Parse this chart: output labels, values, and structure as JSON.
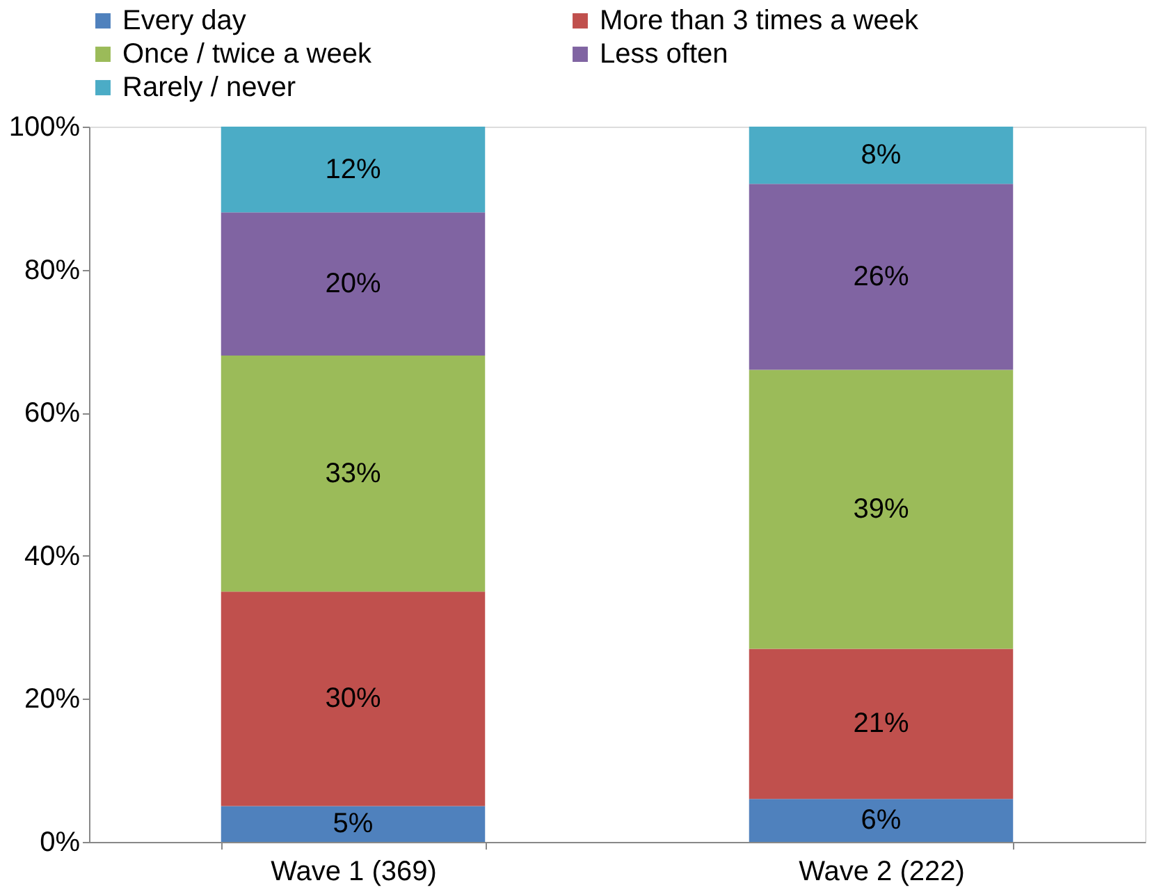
{
  "chart_data": {
    "type": "bar",
    "stacked": true,
    "categories": [
      "Wave 1 (369)",
      "Wave 2 (222)"
    ],
    "series": [
      {
        "name": "Every day",
        "color": "#4f81bd",
        "values": [
          5,
          6
        ],
        "value_labels": [
          "5%",
          "6%"
        ]
      },
      {
        "name": "More than 3 times a week",
        "color": "#c0504d",
        "values": [
          30,
          21
        ],
        "value_labels": [
          "30%",
          "21%"
        ]
      },
      {
        "name": "Once / twice a week",
        "color": "#9bbb59",
        "values": [
          33,
          39
        ],
        "value_labels": [
          "33%",
          "39%"
        ]
      },
      {
        "name": "Less often",
        "color": "#8064a2",
        "values": [
          20,
          26
        ],
        "value_labels": [
          "20%",
          "26%"
        ]
      },
      {
        "name": "Rarely / never",
        "color": "#4bacc6",
        "values": [
          12,
          8
        ],
        "value_labels": [
          "12%",
          "8%"
        ]
      }
    ],
    "ylim": [
      0,
      100
    ],
    "yticks": [
      {
        "value": 0,
        "label": "0%"
      },
      {
        "value": 20,
        "label": "20%"
      },
      {
        "value": 40,
        "label": "40%"
      },
      {
        "value": 60,
        "label": "60%"
      },
      {
        "value": 80,
        "label": "80%"
      },
      {
        "value": 100,
        "label": "100%"
      }
    ],
    "grid": false,
    "legend": "top"
  }
}
